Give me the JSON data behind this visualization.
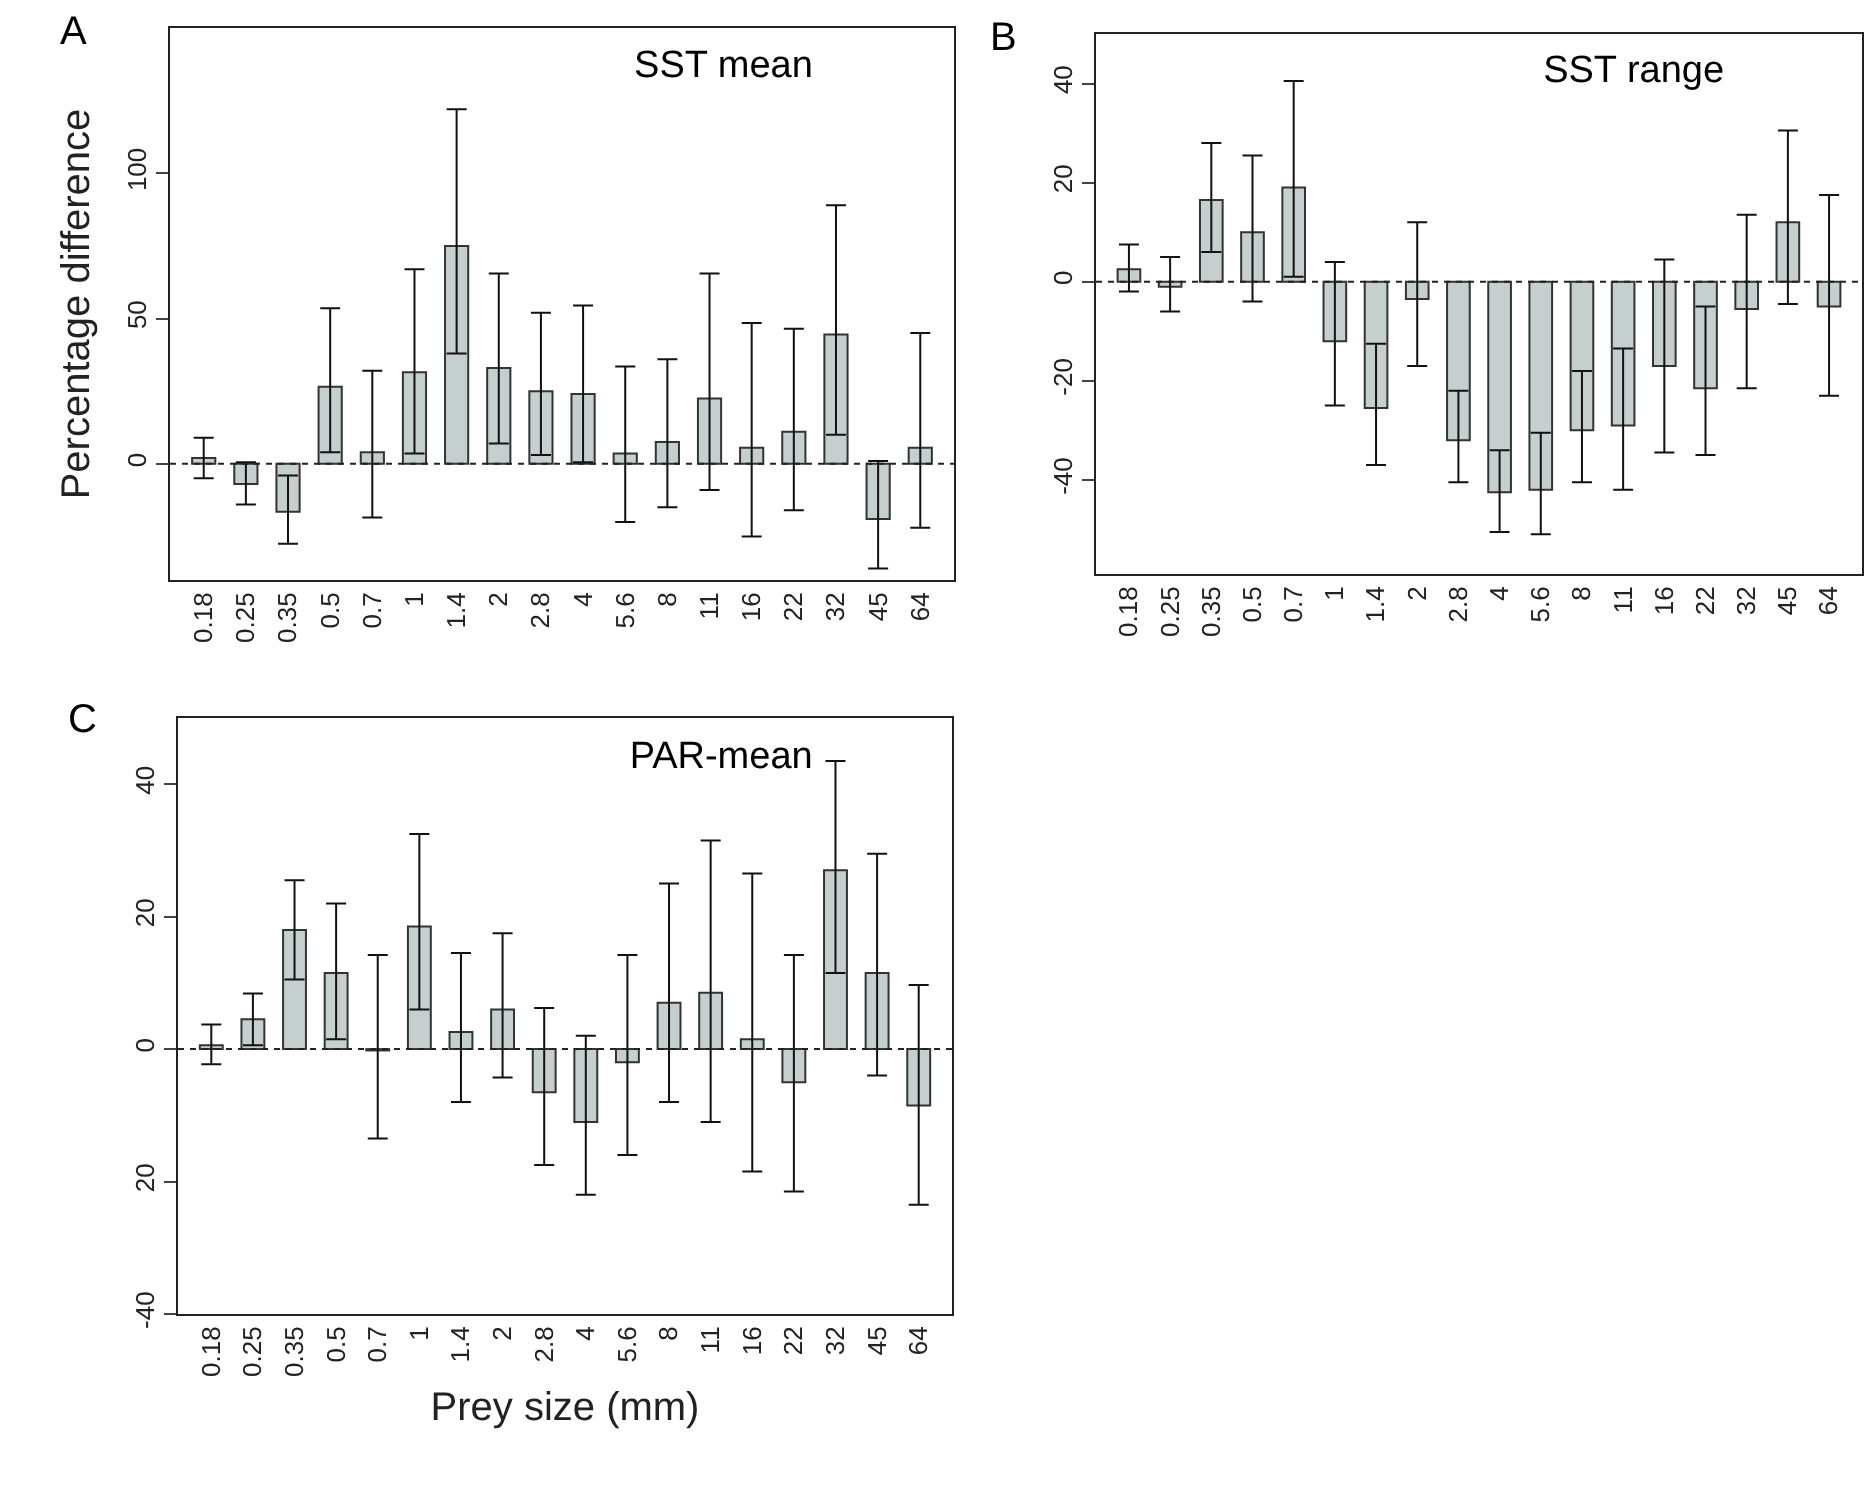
{
  "chart_data": [
    {
      "type": "bar",
      "title": "SST mean",
      "ylabel": "Percentage difference",
      "annotations": [
        "A"
      ],
      "categories": [
        "0.18",
        "0.25",
        "0.35",
        "0.5",
        "0.7",
        "1",
        "1.4",
        "2",
        "2.8",
        "4",
        "5.6",
        "8",
        "11",
        "16",
        "22",
        "32",
        "45",
        "64"
      ],
      "values": [
        2,
        -7,
        -16.5,
        26.5,
        4,
        31.5,
        75,
        33,
        25,
        24,
        3.5,
        7.5,
        22.5,
        5.5,
        11,
        44.5,
        -19,
        5.5
      ],
      "errors": [
        [
          -5,
          9
        ],
        [
          -14,
          0.5
        ],
        [
          -27.5,
          -4
        ],
        [
          4,
          53.5
        ],
        [
          -18.5,
          32
        ],
        [
          3.5,
          67
        ],
        [
          38,
          122
        ],
        [
          7,
          65.5
        ],
        [
          3,
          52
        ],
        [
          0.5,
          54.5
        ],
        [
          -20,
          33.5
        ],
        [
          -15,
          36
        ],
        [
          -9,
          65.5
        ],
        [
          -25,
          48.5
        ],
        [
          -16,
          46.5
        ],
        [
          10,
          89
        ],
        [
          -36,
          1
        ],
        [
          -22,
          45
        ]
      ],
      "color": "#c5d0ce",
      "ylim": [
        -40,
        150
      ],
      "yticks": [
        0,
        50,
        100
      ],
      "ref_lines": [
        {
          "axis": "y",
          "value": 0,
          "line_style": "dotted"
        }
      ]
    },
    {
      "type": "bar",
      "title": "SST range",
      "annotations": [
        "B"
      ],
      "categories": [
        "0.18",
        "0.25",
        "0.35",
        "0.5",
        "0.7",
        "1",
        "1.4",
        "2",
        "2.8",
        "4",
        "5.6",
        "8",
        "11",
        "16",
        "22",
        "32",
        "45",
        "64"
      ],
      "values": [
        2.5,
        -1,
        16.5,
        10,
        19,
        -12,
        -25.5,
        -3.5,
        -32,
        -42.5,
        -42,
        -30,
        -29,
        -17,
        -21.5,
        -5.5,
        12,
        -5
      ],
      "errors": [
        [
          -2,
          7.5
        ],
        [
          -6,
          5
        ],
        [
          6,
          28
        ],
        [
          -4,
          25.5
        ],
        [
          1,
          40.5
        ],
        [
          -25,
          4
        ],
        [
          -37,
          -12.5
        ],
        [
          -17,
          12
        ],
        [
          -40.5,
          -22
        ],
        [
          -50.5,
          -34
        ],
        [
          -51,
          -30.5
        ],
        [
          -40.5,
          -18
        ],
        [
          -42,
          -13.5
        ],
        [
          -34.5,
          4.5
        ],
        [
          -35,
          -5
        ],
        [
          -21.5,
          13.5
        ],
        [
          -4.5,
          30.5
        ],
        [
          -23,
          17.5
        ]
      ],
      "color": "#c5d0ce",
      "ylim": [
        -59,
        50
      ],
      "yticks": [
        -40,
        -20,
        0,
        20,
        40
      ],
      "ref_lines": [
        {
          "axis": "y",
          "value": 0,
          "line_style": "dotted"
        }
      ]
    },
    {
      "type": "bar",
      "title": "PAR-mean",
      "xlabel": "Prey size (mm)",
      "annotations": [
        "C"
      ],
      "categories": [
        "0.18",
        "0.25",
        "0.35",
        "0.5",
        "0.7",
        "1",
        "1.4",
        "2",
        "2.8",
        "4",
        "5.6",
        "8",
        "11",
        "16",
        "22",
        "32",
        "45",
        "64"
      ],
      "values": [
        0.6,
        4.5,
        18,
        11.5,
        -0.2,
        18.5,
        2.6,
        6,
        -6.5,
        -11,
        -2,
        7,
        8.5,
        1.5,
        -5,
        27,
        11.5,
        -8.5
      ],
      "errors": [
        [
          -2.3,
          3.7
        ],
        [
          0.6,
          8.4
        ],
        [
          10.5,
          25.5
        ],
        [
          1.5,
          22
        ],
        [
          -13.5,
          14.2
        ],
        [
          6,
          32.5
        ],
        [
          -8,
          14.5
        ],
        [
          -4.3,
          17.5
        ],
        [
          -17.5,
          6.2
        ],
        [
          -22,
          2
        ],
        [
          -16,
          14.2
        ],
        [
          -8,
          25
        ],
        [
          -11,
          31.5
        ],
        [
          -18.5,
          26.5
        ],
        [
          -21.5,
          14.2
        ],
        [
          11.5,
          43.5
        ],
        [
          -4,
          29.5
        ],
        [
          -23.5,
          9.7
        ]
      ],
      "color": "#c5d0ce",
      "ylim": [
        -40,
        50
      ],
      "yticks": [
        {
          "value": -40,
          "label": "-40"
        },
        {
          "value": -20,
          "label": "20"
        },
        0,
        20,
        40
      ],
      "ref_lines": [
        {
          "axis": "y",
          "value": 0,
          "line_style": "dotted"
        }
      ]
    }
  ]
}
